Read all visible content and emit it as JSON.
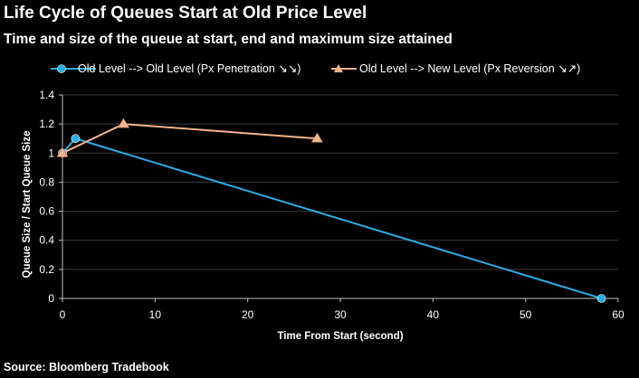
{
  "title": "Life Cycle of Queues Start at Old Price Level",
  "subtitle": "Time and size of the queue at start, end and maximum size attained",
  "source": "Source: Bloomberg Tradebook",
  "colors": {
    "background": "#000000",
    "series1": "#29aee6",
    "series2": "#f4b48a",
    "grid": "#3a3a3a",
    "axis": "#bfbfbf"
  },
  "chart_data": {
    "type": "line",
    "xlabel": "Time From Start (second)",
    "ylabel": "Queue Size / Start Queue Size",
    "xlim": [
      0,
      60
    ],
    "ylim": [
      0,
      1.4
    ],
    "xticks": [
      0,
      10,
      20,
      30,
      40,
      50,
      60
    ],
    "yticks": [
      0,
      0.2,
      0.4,
      0.6,
      0.8,
      1,
      1.2,
      1.4
    ],
    "grid": true,
    "legend_position": "top",
    "series": [
      {
        "name": "Old Level --> Old Level (Px Penetration ↘↘)",
        "marker": "circle",
        "color": "#29aee6",
        "x": [
          0,
          1.4,
          58.2
        ],
        "y": [
          1.0,
          1.1,
          0.0
        ]
      },
      {
        "name": "Old Level --> New Level (Px Reversion ↘↗)",
        "marker": "triangle",
        "color": "#f4b48a",
        "x": [
          0,
          6.6,
          27.5
        ],
        "y": [
          1.0,
          1.2,
          1.1
        ]
      }
    ]
  }
}
